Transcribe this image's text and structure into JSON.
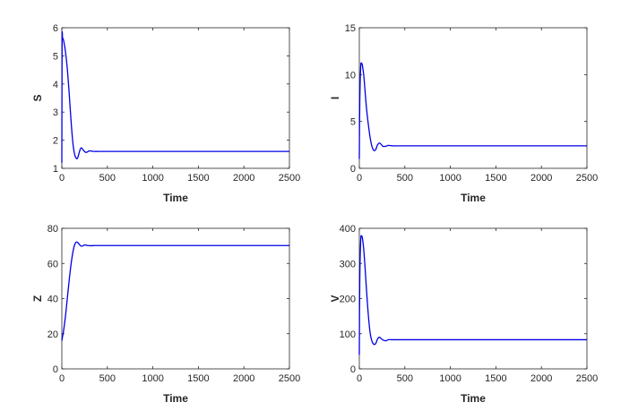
{
  "chart_data": [
    {
      "type": "line",
      "xlabel": "Time",
      "ylabel": "S",
      "xlim": [
        0,
        2500
      ],
      "ylim": [
        1,
        6
      ],
      "x_ticks": [
        0,
        500,
        1000,
        1500,
        2000,
        2500
      ],
      "y_ticks": [
        1,
        2,
        3,
        4,
        5,
        6
      ],
      "line_color": "#0000e6",
      "grid": false,
      "series": [
        {
          "x": [
            0,
            3,
            8,
            15,
            25,
            40,
            60,
            80,
            100,
            120,
            140,
            160,
            175,
            190,
            205,
            220,
            240,
            260,
            280,
            300,
            330,
            360,
            400,
            500,
            1000,
            1500,
            2000,
            2500
          ],
          "y": [
            1.2,
            5.5,
            5.62,
            5.6,
            5.45,
            5.15,
            4.55,
            3.7,
            2.75,
            1.95,
            1.5,
            1.35,
            1.38,
            1.55,
            1.7,
            1.72,
            1.63,
            1.57,
            1.58,
            1.62,
            1.61,
            1.6,
            1.6,
            1.6,
            1.6,
            1.6,
            1.6,
            1.6
          ]
        }
      ]
    },
    {
      "type": "line",
      "xlabel": "Time",
      "ylabel": "I",
      "xlim": [
        0,
        2500
      ],
      "ylim": [
        0,
        15
      ],
      "x_ticks": [
        0,
        500,
        1000,
        1500,
        2000,
        2500
      ],
      "y_ticks": [
        0,
        5,
        10,
        15
      ],
      "line_color": "#0000e6",
      "grid": false,
      "series": [
        {
          "x": [
            0,
            5,
            15,
            25,
            35,
            50,
            65,
            80,
            100,
            120,
            140,
            160,
            180,
            200,
            220,
            240,
            260,
            290,
            320,
            360,
            400,
            500,
            1000,
            1500,
            2000,
            2500
          ],
          "y": [
            1.0,
            7.0,
            10.8,
            11.2,
            10.9,
            9.8,
            8.0,
            6.3,
            4.6,
            3.2,
            2.3,
            1.9,
            2.0,
            2.5,
            2.7,
            2.55,
            2.35,
            2.35,
            2.45,
            2.4,
            2.4,
            2.4,
            2.4,
            2.4,
            2.4,
            2.4
          ]
        }
      ]
    },
    {
      "type": "line",
      "xlabel": "Time",
      "ylabel": "Z",
      "xlim": [
        0,
        2500
      ],
      "ylim": [
        0,
        80
      ],
      "x_ticks": [
        0,
        500,
        1000,
        1500,
        2000,
        2500
      ],
      "y_ticks": [
        0,
        20,
        40,
        60,
        80
      ],
      "line_color": "#0000e6",
      "grid": false,
      "series": [
        {
          "x": [
            0,
            20,
            40,
            60,
            80,
            100,
            120,
            140,
            160,
            180,
            200,
            220,
            240,
            260,
            280,
            320,
            360,
            400,
            500,
            1000,
            1500,
            2000,
            2500
          ],
          "y": [
            16,
            22,
            30,
            40,
            50,
            59,
            66,
            70.5,
            72.2,
            71.6,
            70.3,
            69.8,
            70.3,
            70.5,
            70.2,
            70.1,
            70.2,
            70.2,
            70.2,
            70.2,
            70.2,
            70.2,
            70.2
          ]
        }
      ]
    },
    {
      "type": "line",
      "xlabel": "Time",
      "ylabel": "V",
      "xlim": [
        0,
        2500
      ],
      "ylim": [
        0,
        400
      ],
      "x_ticks": [
        0,
        500,
        1000,
        1500,
        2000,
        2500
      ],
      "y_ticks": [
        0,
        100,
        200,
        300,
        400
      ],
      "line_color": "#0000e6",
      "grid": false,
      "series": [
        {
          "x": [
            0,
            5,
            15,
            25,
            35,
            50,
            65,
            80,
            100,
            120,
            140,
            160,
            180,
            200,
            220,
            240,
            260,
            290,
            320,
            360,
            400,
            500,
            1000,
            1500,
            2000,
            2500
          ],
          "y": [
            40,
            250,
            365,
            378,
            370,
            335,
            280,
            220,
            150,
            100,
            78,
            70,
            72,
            85,
            90,
            86,
            82,
            80,
            83,
            83,
            83,
            83,
            83,
            83,
            83,
            83
          ]
        }
      ]
    }
  ]
}
